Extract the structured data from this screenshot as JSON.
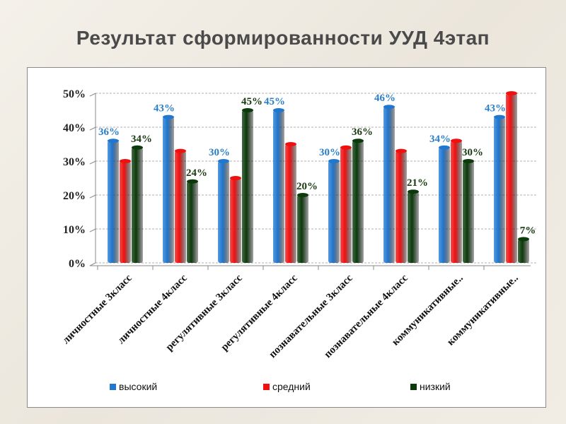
{
  "title": "Результат сформированности УУД  4этап",
  "chart_data": {
    "type": "bar",
    "title": "Результат сформированности УУД  4этап",
    "categories": [
      "личностные 3класс",
      "личностные 4класс",
      "регулятивные 3класс",
      "регулятивные 4класс",
      "познавательные 3класс",
      "познавательные 4класс",
      "коммуникативные..",
      "коммуникативные.."
    ],
    "series": [
      {
        "name": "высокий",
        "color": "#1f77d0",
        "values": [
          36,
          43,
          30,
          45,
          30,
          46,
          34,
          43
        ],
        "labels": [
          "36%",
          "43%",
          "30%",
          "45%",
          "30%",
          "46%",
          "34%",
          "43%"
        ]
      },
      {
        "name": "средний",
        "color": "#f01010",
        "values": [
          30,
          33,
          25,
          35,
          34,
          33,
          36,
          50
        ],
        "labels": []
      },
      {
        "name": "низкий",
        "color": "#0b3a0b",
        "values": [
          34,
          24,
          45,
          20,
          36,
          21,
          30,
          7
        ],
        "labels": [
          "34%",
          "24%",
          "45%",
          "20%",
          "36%",
          "21%",
          "30%",
          "7%"
        ]
      }
    ],
    "yticks": [
      "0%",
      "10%",
      "20%",
      "30%",
      "40%",
      "50%"
    ],
    "ylim": [
      0,
      50
    ],
    "xlabel": "",
    "ylabel": "",
    "grid": true,
    "legend": "bottom"
  }
}
